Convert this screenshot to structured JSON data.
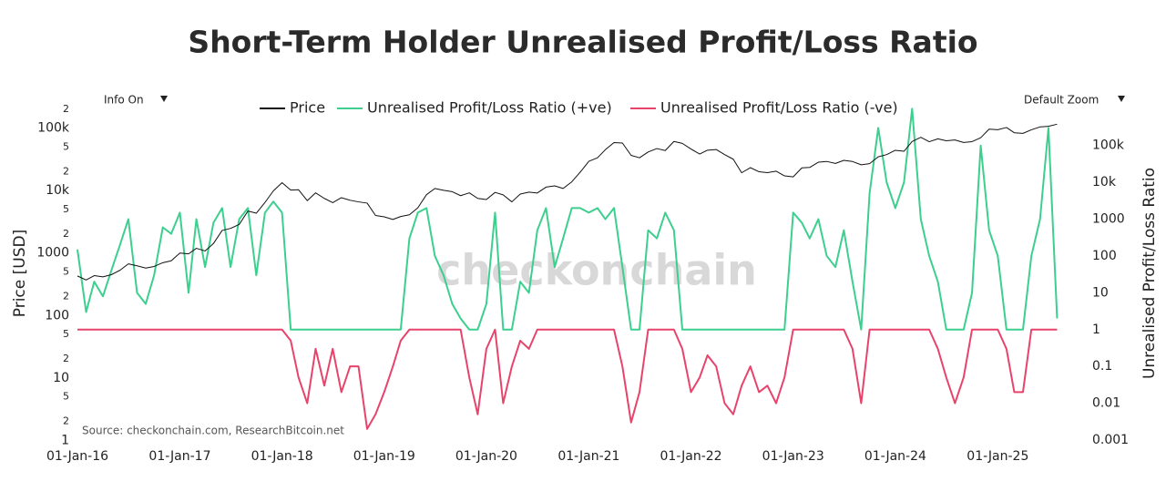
{
  "controls": {
    "info": "Info On",
    "zoom": "Default Zoom"
  },
  "chart_data": {
    "type": "line",
    "title": "Short-Term Holder Unrealised Profit/Loss Ratio",
    "y_label": "Price [USD]",
    "y2_label": "Unrealised Profit/Loss Ratio",
    "annotation": "Source: checkonchain.com, ResearchBitcoin.net",
    "watermark": "checkonchain",
    "yscale": "log",
    "y2scale": "log",
    "xlim": [
      "2016-01-01",
      "2025-09-01"
    ],
    "ylim": [
      0.8,
      280000
    ],
    "y2lim": [
      0.00067,
      1700000
    ],
    "xticks": [
      {
        "value": "2016-01-01",
        "label": "01-Jan-16"
      },
      {
        "value": "2017-01-01",
        "label": "01-Jan-17"
      },
      {
        "value": "2018-01-01",
        "label": "01-Jan-18"
      },
      {
        "value": "2019-01-01",
        "label": "01-Jan-19"
      },
      {
        "value": "2020-01-01",
        "label": "01-Jan-20"
      },
      {
        "value": "2021-01-01",
        "label": "01-Jan-21"
      },
      {
        "value": "2022-01-01",
        "label": "01-Jan-22"
      },
      {
        "value": "2023-01-01",
        "label": "01-Jan-23"
      },
      {
        "value": "2024-01-01",
        "label": "01-Jan-24"
      },
      {
        "value": "2025-01-01",
        "label": "01-Jan-25"
      }
    ],
    "yticks": [
      1,
      2,
      5,
      10,
      {
        "value": 20,
        "label": "2"
      },
      {
        "value": 50,
        "label": "5"
      },
      100,
      {
        "value": 200,
        "label": "2"
      },
      {
        "value": 500,
        "label": "5"
      },
      1000,
      {
        "value": 2000,
        "label": "2"
      },
      {
        "value": 5000,
        "label": "5"
      },
      {
        "value": 10000,
        "label": "10k"
      },
      {
        "value": 20000,
        "label": "2"
      },
      {
        "value": 50000,
        "label": "5"
      },
      {
        "value": 100000,
        "label": "100k"
      },
      {
        "value": 200000,
        "label": "2"
      }
    ],
    "y2ticks": [
      0.001,
      0.01,
      0.1,
      1,
      10,
      100,
      1000,
      {
        "value": 10000,
        "label": "10k"
      },
      {
        "value": 100000,
        "label": "100k"
      }
    ],
    "x": [
      "2016-01-01",
      "2016-02-01",
      "2016-03-01",
      "2016-04-01",
      "2016-05-01",
      "2016-06-01",
      "2016-07-01",
      "2016-08-01",
      "2016-09-01",
      "2016-10-01",
      "2016-11-01",
      "2016-12-01",
      "2017-01-01",
      "2017-02-01",
      "2017-03-01",
      "2017-04-01",
      "2017-05-01",
      "2017-06-01",
      "2017-07-01",
      "2017-08-01",
      "2017-09-01",
      "2017-10-01",
      "2017-11-01",
      "2017-12-01",
      "2018-01-01",
      "2018-02-01",
      "2018-03-01",
      "2018-04-01",
      "2018-05-01",
      "2018-06-01",
      "2018-07-01",
      "2018-08-01",
      "2018-09-01",
      "2018-10-01",
      "2018-11-01",
      "2018-12-01",
      "2019-01-01",
      "2019-02-01",
      "2019-03-01",
      "2019-04-01",
      "2019-05-01",
      "2019-06-01",
      "2019-07-01",
      "2019-08-01",
      "2019-09-01",
      "2019-10-01",
      "2019-11-01",
      "2019-12-01",
      "2020-01-01",
      "2020-02-01",
      "2020-03-01",
      "2020-04-01",
      "2020-05-01",
      "2020-06-01",
      "2020-07-01",
      "2020-08-01",
      "2020-09-01",
      "2020-10-01",
      "2020-11-01",
      "2020-12-01",
      "2021-01-01",
      "2021-02-01",
      "2021-03-01",
      "2021-04-01",
      "2021-05-01",
      "2021-06-01",
      "2021-07-01",
      "2021-08-01",
      "2021-09-01",
      "2021-10-01",
      "2021-11-01",
      "2021-12-01",
      "2022-01-01",
      "2022-02-01",
      "2022-03-01",
      "2022-04-01",
      "2022-05-01",
      "2022-06-01",
      "2022-07-01",
      "2022-08-01",
      "2022-09-01",
      "2022-10-01",
      "2022-11-01",
      "2022-12-01",
      "2023-01-01",
      "2023-02-01",
      "2023-03-01",
      "2023-04-01",
      "2023-05-01",
      "2023-06-01",
      "2023-07-01",
      "2023-08-01",
      "2023-09-01",
      "2023-10-01",
      "2023-11-01",
      "2023-12-01",
      "2024-01-01",
      "2024-02-01",
      "2024-03-01",
      "2024-04-01",
      "2024-05-01",
      "2024-06-01",
      "2024-07-01",
      "2024-08-01",
      "2024-09-01",
      "2024-10-01",
      "2024-11-01",
      "2024-12-01",
      "2025-01-01",
      "2025-02-01",
      "2025-03-01",
      "2025-04-01",
      "2025-05-01",
      "2025-06-01",
      "2025-07-01",
      "2025-08-01"
    ],
    "series": [
      {
        "name": "Unrealised Profit/Loss Ratio (+ve)",
        "color": "#3ccf8e",
        "axis": "y2",
        "values": [
          150,
          3,
          20,
          8,
          40,
          200,
          1000,
          10,
          5,
          30,
          600,
          400,
          1500,
          10,
          1000,
          50,
          800,
          2000,
          50,
          1000,
          2000,
          30,
          1500,
          3000,
          1500,
          1,
          1,
          1,
          1,
          1,
          1,
          1,
          1,
          1,
          1,
          1,
          1,
          1,
          1,
          300,
          1500,
          2000,
          100,
          30,
          5,
          2,
          1,
          1,
          5,
          1500,
          1,
          1,
          20,
          10,
          500,
          2000,
          50,
          300,
          2000,
          2000,
          1500,
          2000,
          1000,
          2000,
          50,
          1,
          1,
          500,
          300,
          1500,
          500,
          1,
          1,
          1,
          1,
          1,
          1,
          1,
          1,
          1,
          1,
          1,
          1,
          1,
          1500,
          800,
          300,
          1000,
          100,
          50,
          500,
          20,
          1,
          5000,
          300000,
          10000,
          2000,
          10000,
          1000000,
          1000,
          100,
          20,
          1,
          1,
          1,
          10,
          100000,
          500,
          100,
          1,
          1,
          1,
          100,
          1000,
          300000,
          2
        ]
      },
      {
        "name": "Unrealised Profit/Loss Ratio (-ve)",
        "color": "#e8436b",
        "axis": "y2",
        "values": [
          1,
          1,
          1,
          1,
          1,
          1,
          1,
          1,
          1,
          1,
          1,
          1,
          1,
          1,
          1,
          1,
          1,
          1,
          1,
          1,
          1,
          1,
          1,
          1,
          1,
          0.5,
          0.05,
          0.01,
          0.3,
          0.03,
          0.3,
          0.02,
          0.1,
          0.1,
          0.002,
          0.005,
          0.02,
          0.1,
          0.5,
          1,
          1,
          1,
          1,
          1,
          1,
          1,
          0.05,
          0.005,
          0.3,
          1,
          0.01,
          0.1,
          0.5,
          0.3,
          1,
          1,
          1,
          1,
          1,
          1,
          1,
          1,
          1,
          1,
          0.1,
          0.003,
          0.02,
          1,
          1,
          1,
          1,
          0.3,
          0.02,
          0.05,
          0.2,
          0.1,
          0.01,
          0.005,
          0.03,
          0.1,
          0.02,
          0.03,
          0.01,
          0.05,
          1,
          1,
          1,
          1,
          1,
          1,
          1,
          0.3,
          0.01,
          1,
          1,
          1,
          1,
          1,
          1,
          1,
          1,
          0.3,
          0.05,
          0.01,
          0.05,
          1,
          1,
          1,
          1,
          0.3,
          0.02,
          0.02,
          1,
          1,
          1,
          1
        ]
      },
      {
        "name": "Price",
        "color": "#111111",
        "axis": "y",
        "values": [
          430,
          370,
          435,
          415,
          450,
          530,
          670,
          625,
          575,
          610,
          700,
          750,
          1000,
          970,
          1190,
          1080,
          1420,
          2300,
          2480,
          2870,
          4700,
          4340,
          6450,
          9900,
          13400,
          10200,
          10300,
          6900,
          9200,
          7500,
          6400,
          7700,
          7000,
          6600,
          6300,
          4000,
          3800,
          3450,
          3850,
          4100,
          5300,
          8600,
          10800,
          10100,
          9600,
          8300,
          9200,
          7500,
          7200,
          9350,
          8550,
          6600,
          8800,
          9450,
          9150,
          11350,
          11900,
          10800,
          13800,
          19700,
          29400,
          33500,
          45200,
          58800,
          57700,
          36700,
          33500,
          41500,
          47100,
          43800,
          61300,
          57000,
          46300,
          38500,
          44400,
          45500,
          37700,
          31800,
          19300,
          23300,
          20000,
          19400,
          20500,
          17200,
          16600,
          23100,
          23500,
          28500,
          29300,
          27200,
          30500,
          29200,
          25900,
          27000,
          34700,
          37700,
          44200,
          42600,
          61200,
          71300,
          60600,
          67500,
          62700,
          64600,
          58900,
          60800,
          70200,
          96400,
          94400,
          102400,
          84400,
          82500,
          94200,
          104600,
          107100,
          115700
        ]
      }
    ],
    "legend_order": [
      2,
      0,
      1
    ]
  }
}
